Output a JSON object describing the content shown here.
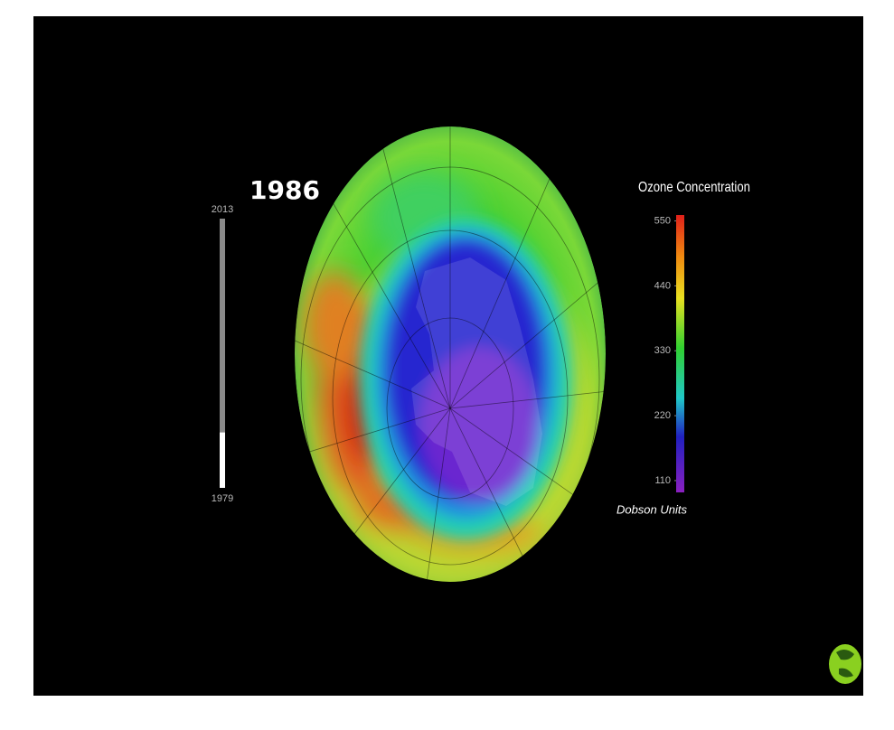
{
  "year": 1986,
  "timeline": {
    "start": 1979,
    "end": 2013
  },
  "colorbar": {
    "title": "Ozone Concentration",
    "unit": "Dobson Units",
    "range": [
      90,
      560
    ],
    "ticks": [
      110,
      220,
      330,
      440,
      550
    ]
  }
}
